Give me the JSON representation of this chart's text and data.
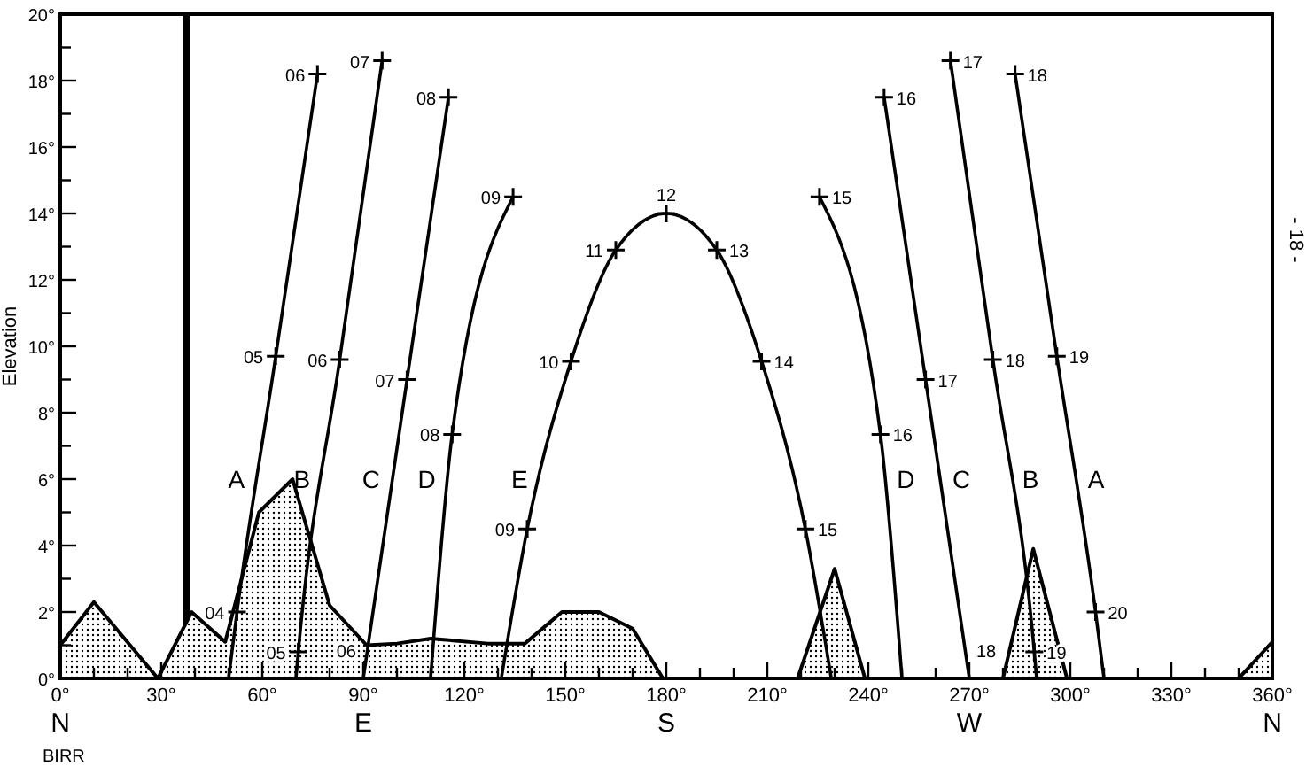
{
  "chart_data": {
    "type": "line",
    "ylabel": "Elevation",
    "xlim": [
      0,
      360
    ],
    "ylim": [
      0,
      20
    ],
    "xticks": [
      {
        "value": 0,
        "label": "0°\nN"
      },
      {
        "value": 10,
        "label": null
      },
      {
        "value": 20,
        "label": null
      },
      {
        "value": 30,
        "label": "30°"
      },
      {
        "value": 40,
        "label": null
      },
      {
        "value": 50,
        "label": null
      },
      {
        "value": 60,
        "label": "60°"
      },
      {
        "value": 70,
        "label": null
      },
      {
        "value": 80,
        "label": null
      },
      {
        "value": 90,
        "label": "90°\nE"
      },
      {
        "value": 100,
        "label": null
      },
      {
        "value": 110,
        "label": null
      },
      {
        "value": 120,
        "label": "120°"
      },
      {
        "value": 130,
        "label": null
      },
      {
        "value": 140,
        "label": null
      },
      {
        "value": 150,
        "label": "150°"
      },
      {
        "value": 160,
        "label": null
      },
      {
        "value": 170,
        "label": null
      },
      {
        "value": 180,
        "label": "180°\nS"
      },
      {
        "value": 190,
        "label": null
      },
      {
        "value": 200,
        "label": null
      },
      {
        "value": 210,
        "label": "210°"
      },
      {
        "value": 220,
        "label": null
      },
      {
        "value": 230,
        "label": null
      },
      {
        "value": 240,
        "label": "240°"
      },
      {
        "value": 250,
        "label": null
      },
      {
        "value": 260,
        "label": null
      },
      {
        "value": 270,
        "label": "270°\nW"
      },
      {
        "value": 280,
        "label": null
      },
      {
        "value": 290,
        "label": null
      },
      {
        "value": 300,
        "label": "300°"
      },
      {
        "value": 310,
        "label": null
      },
      {
        "value": 320,
        "label": null
      },
      {
        "value": 330,
        "label": "330°"
      },
      {
        "value": 340,
        "label": null
      },
      {
        "value": 350,
        "label": null
      },
      {
        "value": 360,
        "label": "360°\nN"
      }
    ],
    "yticks": [
      {
        "value": 0,
        "label": "0°"
      },
      {
        "value": 1,
        "label": null
      },
      {
        "value": 2,
        "label": "2°"
      },
      {
        "value": 3,
        "label": null
      },
      {
        "value": 4,
        "label": "4°"
      },
      {
        "value": 5,
        "label": null
      },
      {
        "value": 6,
        "label": "6°"
      },
      {
        "value": 7,
        "label": null
      },
      {
        "value": 8,
        "label": "8°"
      },
      {
        "value": 9,
        "label": null
      },
      {
        "value": 10,
        "label": "10°"
      },
      {
        "value": 11,
        "label": null
      },
      {
        "value": 12,
        "label": "12°"
      },
      {
        "value": 13,
        "label": null
      },
      {
        "value": 14,
        "label": "14°"
      },
      {
        "value": 15,
        "label": null
      },
      {
        "value": 16,
        "label": "16°"
      },
      {
        "value": 17,
        "label": null
      },
      {
        "value": 18,
        "label": "18°"
      },
      {
        "value": 19,
        "label": null
      },
      {
        "value": 20,
        "label": "20°"
      }
    ],
    "line_style": "solid",
    "grid": false,
    "legend": false,
    "series": [
      {
        "type": "area",
        "color": "#000000",
        "x": [
          0,
          10,
          29,
          39,
          49,
          59,
          69,
          80,
          91,
          100,
          110,
          127,
          138,
          149,
          160,
          170,
          179,
          219,
          230,
          239,
          280,
          289,
          299,
          350,
          360
        ],
        "values": [
          1,
          2.3,
          0,
          2,
          1.1,
          5,
          6,
          2.2,
          1,
          1.05,
          1.2,
          1.05,
          1.05,
          2,
          2,
          1.5,
          0,
          0,
          3.3,
          0,
          0,
          3.9,
          0,
          0,
          1.1
        ]
      },
      {
        "name": "A",
        "color": "#000000",
        "x": [
          50,
          52.5,
          64,
          76.4,
          180,
          283.6,
          296,
          307.5,
          310
        ],
        "values": [
          0,
          2,
          9.7,
          18.2,
          null,
          18.2,
          9.7,
          2,
          0
        ]
      },
      {
        "name": "B",
        "color": "#000000",
        "x": [
          70,
          70.7,
          83,
          95.6,
          180,
          264.4,
          277,
          289.3,
          290
        ],
        "values": [
          0,
          0.8,
          9.6,
          18.6,
          null,
          18.6,
          9.6,
          0.8,
          0
        ]
      },
      {
        "name": "C",
        "color": "#000000",
        "x": [
          90,
          103,
          115.3,
          180,
          244.7,
          257,
          270
        ],
        "values": [
          0,
          9,
          17.5,
          null,
          17.5,
          9,
          0
        ]
      },
      {
        "name": "D",
        "color": "#000000",
        "x": [
          110,
          116.4,
          134.5,
          180,
          225.5,
          243.6,
          250
        ],
        "values": [
          0,
          7.35,
          14.5,
          null,
          14.5,
          7.35,
          0
        ]
      },
      {
        "name": "E",
        "color": "#000000",
        "x": [
          131,
          138.7,
          151.7,
          165,
          180,
          195,
          208.3,
          221.3,
          229
        ],
        "values": [
          0,
          4.5,
          9.55,
          12.9,
          14,
          12.9,
          9.55,
          4.5,
          0
        ]
      }
    ],
    "ref_lines": [
      {
        "axis": "x",
        "value": 37.5,
        "color": "#000000"
      }
    ],
    "annotations": [
      "BIRR",
      "- 18 -",
      {
        "text": "04",
        "x": 52.5,
        "y": 2
      },
      {
        "text": "05",
        "x": 64,
        "y": 9.7
      },
      {
        "text": "06",
        "x": 76.4,
        "y": 18.2
      },
      {
        "text": "18",
        "x": 283.6,
        "y": 18.2
      },
      {
        "text": "19",
        "x": 296,
        "y": 9.7
      },
      {
        "text": "20",
        "x": 307.5,
        "y": 2
      },
      {
        "text": "05",
        "x": 70.7,
        "y": 0.8
      },
      {
        "text": "06",
        "x": 83,
        "y": 9.6
      },
      {
        "text": "07",
        "x": 95.6,
        "y": 18.6
      },
      {
        "text": "17",
        "x": 264.4,
        "y": 18.6
      },
      {
        "text": "18",
        "x": 277,
        "y": 9.6
      },
      {
        "text": "19",
        "x": 289.3,
        "y": 0.8
      },
      {
        "text": "06",
        "x": 90,
        "y": 0
      },
      {
        "text": "07",
        "x": 103,
        "y": 9
      },
      {
        "text": "08",
        "x": 115.3,
        "y": 17.5
      },
      {
        "text": "16",
        "x": 244.7,
        "y": 17.5
      },
      {
        "text": "17",
        "x": 257,
        "y": 9
      },
      {
        "text": "18",
        "x": 270,
        "y": 0
      },
      {
        "text": "08",
        "x": 116.4,
        "y": 7.35
      },
      {
        "text": "09",
        "x": 134.5,
        "y": 14.5
      },
      {
        "text": "15",
        "x": 225.5,
        "y": 14.5
      },
      {
        "text": "16",
        "x": 243.6,
        "y": 7.35
      },
      {
        "text": "09",
        "x": 138.7,
        "y": 4.5
      },
      {
        "text": "10",
        "x": 151.7,
        "y": 9.55
      },
      {
        "text": "11",
        "x": 165,
        "y": 12.9
      },
      {
        "text": "12",
        "x": 180,
        "y": 14
      },
      {
        "text": "13",
        "x": 195,
        "y": 12.9
      },
      {
        "text": "14",
        "x": 208.3,
        "y": 9.55
      },
      {
        "text": "15",
        "x": 221.3,
        "y": 4.5
      }
    ]
  }
}
